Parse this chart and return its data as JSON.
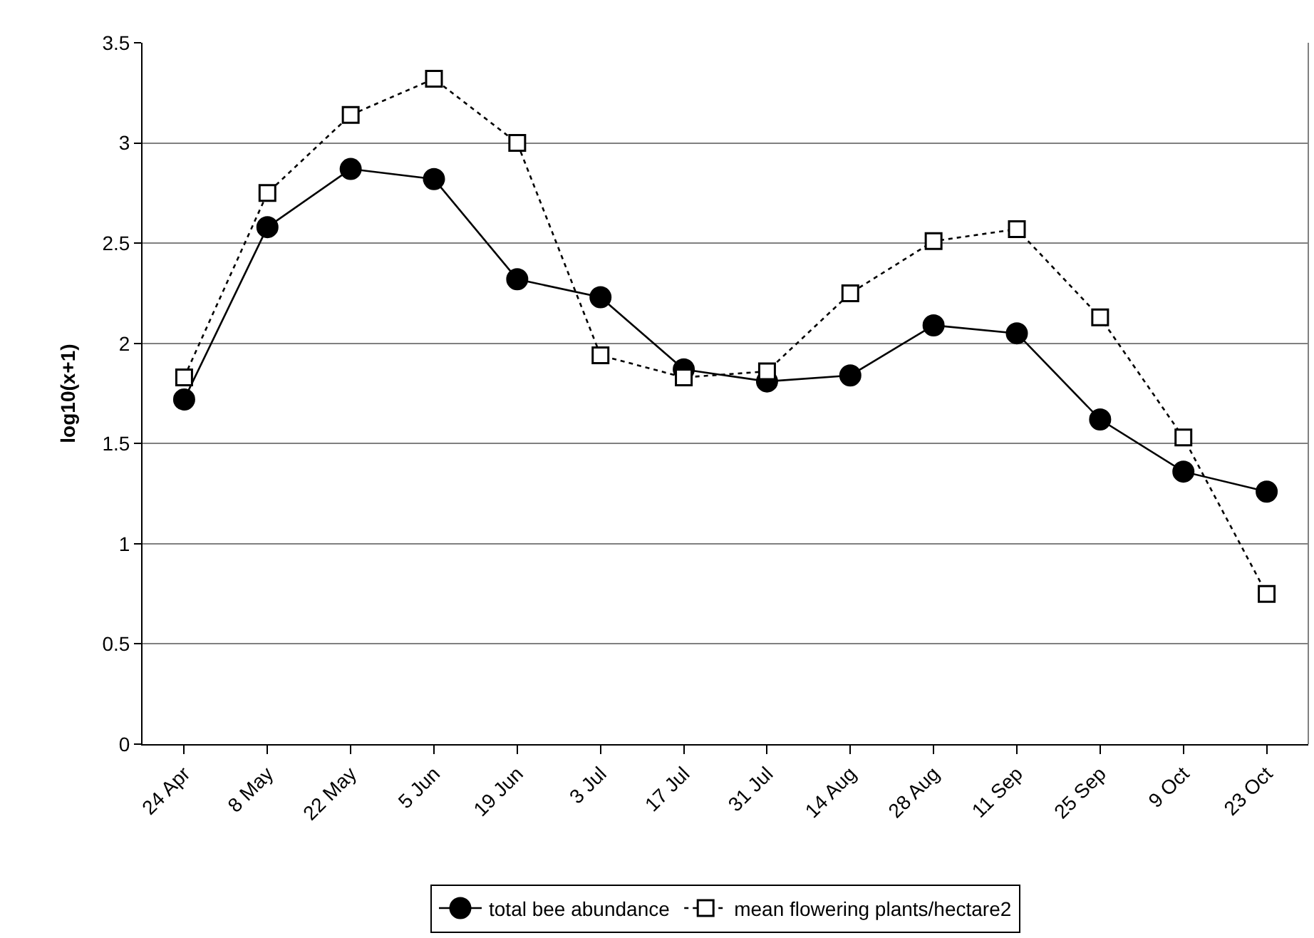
{
  "chart_data": {
    "type": "line",
    "ylabel": "log10(x+1)",
    "categories": [
      "24 Apr",
      "8 May",
      "22 May",
      "5 Jun",
      "19 Jun",
      "3 Jul",
      "17 Jul",
      "31 Jul",
      "14 Aug",
      "28 Aug",
      "11 Sep",
      "25 Sep",
      "9 Oct",
      "23 Oct"
    ],
    "series": [
      {
        "name": "total bee abundance",
        "color": "#000000",
        "marker": "circle",
        "line_style": "solid",
        "values": [
          1.72,
          2.58,
          2.87,
          2.82,
          2.32,
          2.23,
          1.87,
          1.81,
          1.84,
          2.09,
          2.05,
          1.62,
          1.36,
          1.26
        ]
      },
      {
        "name": "mean flowering plants/hectare2",
        "color": "#000000",
        "marker": "square",
        "line_style": "dotted",
        "values": [
          1.83,
          2.75,
          3.14,
          3.32,
          3.0,
          1.94,
          1.83,
          1.86,
          2.25,
          2.51,
          2.57,
          2.13,
          1.53,
          0.75
        ]
      }
    ],
    "ylim": [
      0,
      3.5
    ],
    "yticks": [
      0,
      0.5,
      1,
      1.5,
      2,
      2.5,
      3,
      3.5
    ],
    "grid": "y",
    "legend": "bottom"
  }
}
